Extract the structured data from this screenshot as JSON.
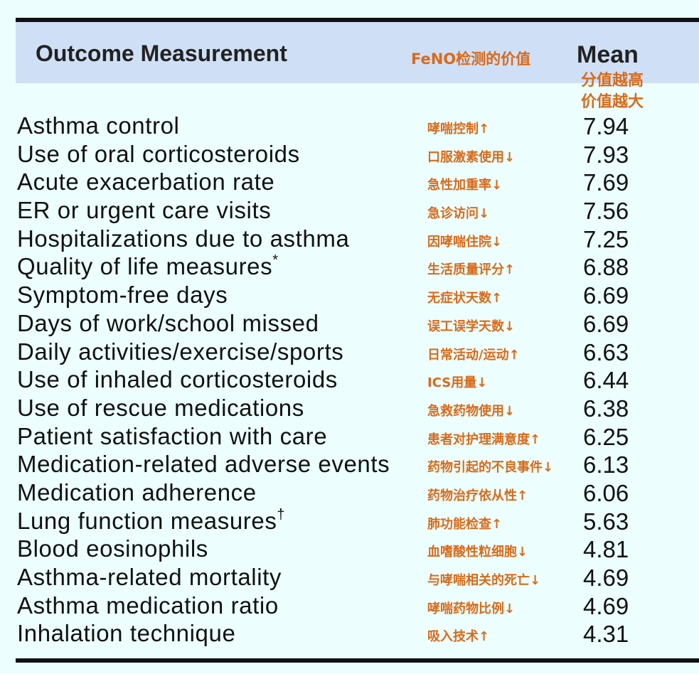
{
  "header": {
    "outcome_label": "Outcome Measurement",
    "feno_label": "FeNO检测的价值",
    "mean_label": "Mean",
    "mean_note_line1": "分值越高",
    "mean_note_line2": "价值越大"
  },
  "rows": [
    {
      "outcome": "Asthma control",
      "sup": "",
      "zh": "哮喘控制↑",
      "mean": "7.94"
    },
    {
      "outcome": "Use of oral corticosteroids",
      "sup": "",
      "zh": "口服激素使用↓",
      "mean": "7.93"
    },
    {
      "outcome": "Acute exacerbation rate",
      "sup": "",
      "zh": "急性加重率↓",
      "mean": "7.69"
    },
    {
      "outcome": "ER or urgent care visits",
      "sup": "",
      "zh": "急诊访问↓",
      "mean": "7.56"
    },
    {
      "outcome": "Hospitalizations due to asthma",
      "sup": "",
      "zh": "因哮喘住院↓",
      "mean": "7.25"
    },
    {
      "outcome": "Quality of life measures",
      "sup": "*",
      "zh": "生活质量评分↑",
      "mean": "6.88"
    },
    {
      "outcome": "Symptom-free days",
      "sup": "",
      "zh": "无症状天数↑",
      "mean": "6.69"
    },
    {
      "outcome": "Days of work/school missed",
      "sup": "",
      "zh": "误工误学天数↓",
      "mean": "6.69"
    },
    {
      "outcome": "Daily activities/exercise/sports",
      "sup": "",
      "zh": "日常活动/运动↑",
      "mean": "6.63"
    },
    {
      "outcome": "Use of inhaled corticosteroids",
      "sup": "",
      "zh": "ICS用量↓",
      "mean": "6.44"
    },
    {
      "outcome": "Use of rescue medications",
      "sup": "",
      "zh": "急救药物使用↓",
      "mean": "6.38"
    },
    {
      "outcome": "Patient satisfaction with care",
      "sup": "",
      "zh": "患者对护理满意度↑",
      "mean": "6.25"
    },
    {
      "outcome": "Medication-related adverse events",
      "sup": "",
      "zh": "药物引起的不良事件↓",
      "mean": "6.13"
    },
    {
      "outcome": "Medication adherence",
      "sup": "",
      "zh": "药物治疗依从性↑",
      "mean": "6.06"
    },
    {
      "outcome": "Lung function measures",
      "sup": "†",
      "zh": "肺功能检查↑",
      "mean": "5.63"
    },
    {
      "outcome": "Blood eosinophils",
      "sup": "",
      "zh": "血嗜酸性粒细胞↓",
      "mean": "4.81"
    },
    {
      "outcome": "Asthma-related mortality",
      "sup": "",
      "zh": "与哮喘相关的死亡↓",
      "mean": "4.69"
    },
    {
      "outcome": "Asthma medication ratio",
      "sup": "",
      "zh": "哮喘药物比例↓",
      "mean": "4.69"
    },
    {
      "outcome": "Inhalation technique",
      "sup": "",
      "zh": "吸入技术↑",
      "mean": "4.31"
    }
  ]
}
